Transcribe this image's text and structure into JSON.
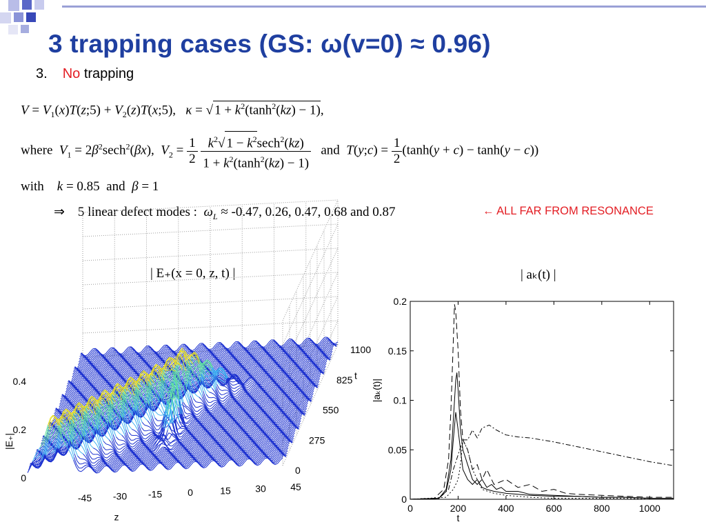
{
  "slide": {
    "title": "3 trapping cases   (GS: ω(v=0) ≈ 0.96)",
    "subtitle_number": "3.",
    "subtitle_no": "No",
    "subtitle_rest": "trapping",
    "resonance_note": "← ALL FAR FROM RESONANCE",
    "title_color": "#1f3fa0",
    "accent_color": "#e31e24"
  },
  "equations": {
    "line1": "V = V₁(x)T(z;5) + V₂(z)T(x;5),   κ = √(1 + k²(tanh²(kz) − 1)),",
    "line2": "where  V₁ = 2β²sech²(βx),  V₂ = (1/2) · k²√(1 − k²)sech²(kz) / (1 + k²(tanh²(kz) − 1))   and  T(y;c) = (1/2)(tanh(y + c) − tanh(y − c))",
    "line3": "with   k = 0.85  and  β = 1",
    "line4": "⇒   5 linear defect modes :  ω_L ≈ -0.47,  0.26,  0.47,  0.68 and  0.87",
    "with_word": "with",
    "where_word": "where",
    "and_word": "and",
    "implies_symbol": "⇒",
    "modes_text": "5 linear defect modes :",
    "omega_values": "≈ -0.47,  0.26,  0.47,  0.68 and  0.87"
  },
  "plots": {
    "left_title": "| E₊(x = 0, z, t) |",
    "right_title": "| aₖ(t) |"
  },
  "chart_data": [
    {
      "type": "surface",
      "title": "| E₊(x = 0, z, t) |",
      "xlabel": "z",
      "ylabel": "t",
      "zlabel": "|E₊|",
      "x_ticks": [
        "-45",
        "-30",
        "-15",
        "0",
        "15",
        "30",
        "45"
      ],
      "y_ticks": [
        "0",
        "275",
        "550",
        "825",
        "1100"
      ],
      "z_ticks": [
        "0",
        "0.2",
        "0.4"
      ],
      "xlim": [
        -50,
        50
      ],
      "ylim": [
        0,
        1100
      ],
      "zlim": [
        0,
        0.4
      ],
      "grid": true
    },
    {
      "type": "line",
      "title": "| aₖ(t) |",
      "xlabel": "t",
      "ylabel": "|aₖ(t)|",
      "xlim": [
        0,
        1100
      ],
      "ylim": [
        0,
        0.2
      ],
      "x_ticks": [
        "0",
        "200",
        "400",
        "600",
        "800",
        "1000"
      ],
      "y_ticks": [
        "0",
        "0.05",
        "0.1",
        "0.15",
        "0.2"
      ],
      "series": [
        {
          "style": "dashed",
          "x": [
            0,
            100,
            140,
            160,
            170,
            180,
            185,
            190,
            200,
            210,
            220,
            240,
            260,
            280,
            300,
            320,
            350,
            400,
            450,
            500,
            550,
            600,
            650,
            700,
            800,
            900,
            1000,
            1100
          ],
          "y": [
            0,
            0.001,
            0.01,
            0.04,
            0.09,
            0.16,
            0.197,
            0.19,
            0.15,
            0.09,
            0.06,
            0.05,
            0.03,
            0.035,
            0.02,
            0.03,
            0.015,
            0.02,
            0.012,
            0.015,
            0.008,
            0.01,
            0.006,
            0.005,
            0.004,
            0.003,
            0.002,
            0.002
          ]
        },
        {
          "style": "dash-dot",
          "x": [
            0,
            120,
            160,
            180,
            200,
            220,
            240,
            260,
            280,
            300,
            330,
            360,
            400,
            450,
            500,
            600,
            700,
            800,
            900,
            1000,
            1100
          ],
          "y": [
            0,
            0.001,
            0.01,
            0.03,
            0.045,
            0.06,
            0.06,
            0.07,
            0.062,
            0.072,
            0.075,
            0.07,
            0.065,
            0.063,
            0.062,
            0.058,
            0.053,
            0.048,
            0.043,
            0.038,
            0.034
          ]
        },
        {
          "style": "solid",
          "x": [
            0,
            120,
            150,
            170,
            180,
            190,
            195,
            200,
            210,
            220,
            240,
            260,
            280,
            300,
            320,
            340,
            360,
            380,
            400,
            450,
            500,
            600,
            700,
            800,
            900,
            1000,
            1100
          ],
          "y": [
            0,
            0.001,
            0.01,
            0.04,
            0.08,
            0.12,
            0.128,
            0.11,
            0.07,
            0.05,
            0.035,
            0.02,
            0.015,
            0.02,
            0.012,
            0.015,
            0.01,
            0.012,
            0.008,
            0.008,
            0.005,
            0.004,
            0.003,
            0.002,
            0.002,
            0.001,
            0.001
          ]
        },
        {
          "style": "solid",
          "x": [
            0,
            120,
            150,
            170,
            180,
            190,
            200,
            210,
            220,
            240,
            260,
            280,
            300,
            320,
            350,
            400,
            450,
            500,
            600,
            700,
            800,
            900,
            1000,
            1100
          ],
          "y": [
            0,
            0.001,
            0.008,
            0.03,
            0.06,
            0.088,
            0.07,
            0.05,
            0.03,
            0.02,
            0.015,
            0.02,
            0.012,
            0.01,
            0.008,
            0.006,
            0.005,
            0.004,
            0.003,
            0.003,
            0.002,
            0.002,
            0.001,
            0.001
          ]
        },
        {
          "style": "dotted",
          "x": [
            0,
            150,
            180,
            200,
            210,
            220,
            240,
            260,
            280,
            300,
            350,
            400,
            500,
            600,
            700,
            800,
            900,
            1000,
            1100
          ],
          "y": [
            0,
            0.002,
            0.01,
            0.02,
            0.035,
            0.06,
            0.05,
            0.03,
            0.02,
            0.01,
            0.006,
            0.004,
            0.002,
            0.001,
            0.001,
            0.001,
            0.001,
            0,
            0
          ]
        }
      ]
    }
  ]
}
